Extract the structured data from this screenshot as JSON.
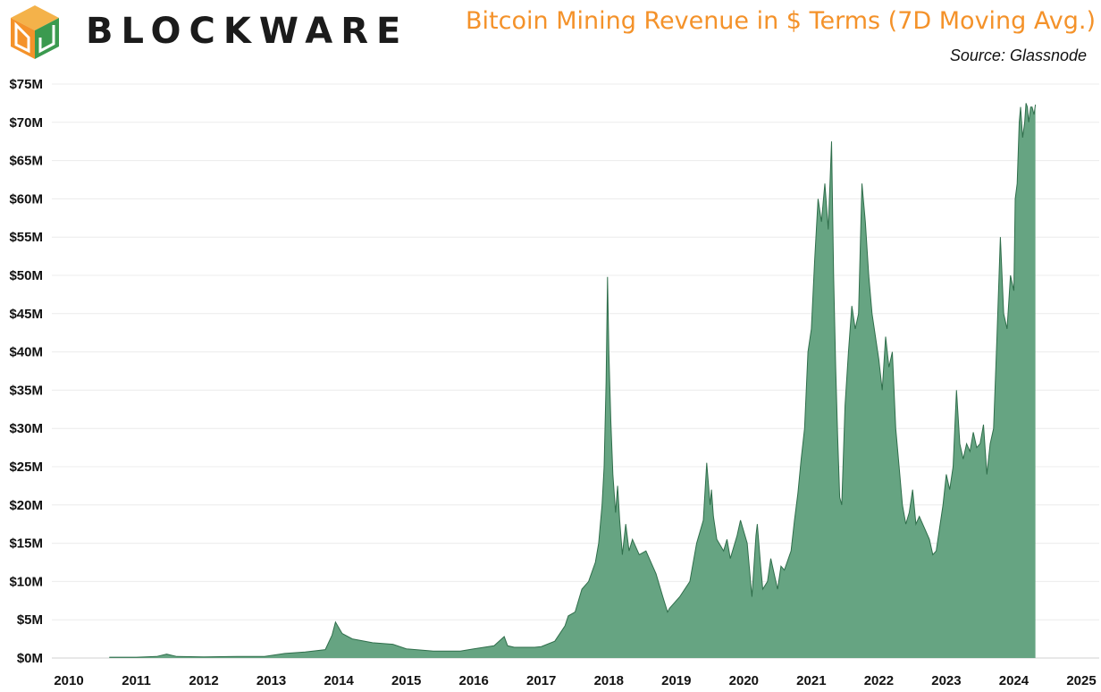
{
  "header": {
    "brand": "BLOCKWARE",
    "title": "Bitcoin Mining Revenue in $ Terms (7D Moving Avg.)",
    "source": "Source: Glassnode"
  },
  "colors": {
    "title": "#f4922a",
    "area_fill": "#66a482",
    "area_line": "#2f6e4b",
    "logo_orange": "#f4922a",
    "logo_green": "#3b9a4f"
  },
  "chart_data": {
    "type": "area",
    "title": "Bitcoin Mining Revenue in $ Terms (7D Moving Avg.)",
    "xlabel": "",
    "ylabel": "",
    "xlim": [
      2010,
      2025
    ],
    "ylim": [
      0,
      75
    ],
    "grid": "horizontal",
    "y_ticks": [
      {
        "value": 0,
        "label": "$0M"
      },
      {
        "value": 5,
        "label": "$5M"
      },
      {
        "value": 10,
        "label": "$10M"
      },
      {
        "value": 15,
        "label": "$15M"
      },
      {
        "value": 20,
        "label": "$20M"
      },
      {
        "value": 25,
        "label": "$25M"
      },
      {
        "value": 30,
        "label": "$30M"
      },
      {
        "value": 35,
        "label": "$35M"
      },
      {
        "value": 40,
        "label": "$40M"
      },
      {
        "value": 45,
        "label": "$45M"
      },
      {
        "value": 50,
        "label": "$50M"
      },
      {
        "value": 55,
        "label": "$55M"
      },
      {
        "value": 60,
        "label": "$60M"
      },
      {
        "value": 65,
        "label": "$65M"
      },
      {
        "value": 70,
        "label": "$70M"
      },
      {
        "value": 75,
        "label": "$75M"
      }
    ],
    "x_ticks": [
      {
        "value": 2010,
        "label": "2010"
      },
      {
        "value": 2011,
        "label": "2011"
      },
      {
        "value": 2012,
        "label": "2012"
      },
      {
        "value": 2013,
        "label": "2013"
      },
      {
        "value": 2014,
        "label": "2014"
      },
      {
        "value": 2015,
        "label": "2015"
      },
      {
        "value": 2016,
        "label": "2016"
      },
      {
        "value": 2017,
        "label": "2017"
      },
      {
        "value": 2018,
        "label": "2018"
      },
      {
        "value": 2019,
        "label": "2019"
      },
      {
        "value": 2020,
        "label": "2020"
      },
      {
        "value": 2021,
        "label": "2021"
      },
      {
        "value": 2022,
        "label": "2022"
      },
      {
        "value": 2023,
        "label": "2023"
      },
      {
        "value": 2024,
        "label": "2024"
      },
      {
        "value": 2025,
        "label": "2025"
      }
    ],
    "series": [
      {
        "x": [
          2010.6,
          2011.0,
          2011.3,
          2011.45,
          2011.6,
          2012.0,
          2012.5,
          2012.9,
          2013.2,
          2013.5,
          2013.8,
          2013.9,
          2013.95,
          2014.05,
          2014.2,
          2014.5,
          2014.8,
          2015.0,
          2015.4,
          2015.8,
          2016.0,
          2016.3,
          2016.45,
          2016.5,
          2016.6,
          2016.9,
          2017.0,
          2017.2,
          2017.35,
          2017.4,
          2017.5,
          2017.6,
          2017.7,
          2017.8,
          2017.85,
          2017.9,
          2017.93,
          2017.96,
          2017.98,
          2018.0,
          2018.03,
          2018.06,
          2018.1,
          2018.13,
          2018.16,
          2018.2,
          2018.25,
          2018.3,
          2018.35,
          2018.45,
          2018.55,
          2018.7,
          2018.8,
          2018.87,
          2018.9,
          2018.95,
          2019.05,
          2019.2,
          2019.3,
          2019.4,
          2019.45,
          2019.5,
          2019.52,
          2019.55,
          2019.6,
          2019.7,
          2019.75,
          2019.8,
          2019.9,
          2019.95,
          2020.05,
          2020.12,
          2020.18,
          2020.2,
          2020.25,
          2020.28,
          2020.35,
          2020.4,
          2020.45,
          2020.5,
          2020.55,
          2020.6,
          2020.7,
          2020.75,
          2020.8,
          2020.85,
          2020.9,
          2020.95,
          2021.0,
          2021.05,
          2021.1,
          2021.15,
          2021.2,
          2021.25,
          2021.3,
          2021.33,
          2021.36,
          2021.39,
          2021.42,
          2021.45,
          2021.5,
          2021.55,
          2021.6,
          2021.65,
          2021.7,
          2021.75,
          2021.8,
          2021.85,
          2021.9,
          2021.95,
          2022.0,
          2022.05,
          2022.1,
          2022.15,
          2022.2,
          2022.25,
          2022.3,
          2022.35,
          2022.4,
          2022.45,
          2022.5,
          2022.55,
          2022.6,
          2022.7,
          2022.75,
          2022.8,
          2022.85,
          2022.9,
          2022.95,
          2023.0,
          2023.05,
          2023.1,
          2023.15,
          2023.2,
          2023.25,
          2023.3,
          2023.35,
          2023.4,
          2023.45,
          2023.5,
          2023.55,
          2023.6,
          2023.65,
          2023.7,
          2023.75,
          2023.8,
          2023.85,
          2023.9,
          2023.95,
          2024.0,
          2024.02,
          2024.05,
          2024.08,
          2024.1,
          2024.13,
          2024.16,
          2024.18,
          2024.2,
          2024.22,
          2024.25,
          2024.27,
          2024.3,
          2024.32
        ],
        "values": [
          0.1,
          0.1,
          0.2,
          0.5,
          0.2,
          0.15,
          0.2,
          0.2,
          0.6,
          0.8,
          1.1,
          3.0,
          4.7,
          3.2,
          2.5,
          2.0,
          1.8,
          1.2,
          0.9,
          0.9,
          1.2,
          1.6,
          2.8,
          1.6,
          1.4,
          1.4,
          1.5,
          2.2,
          4.2,
          5.5,
          6.0,
          9.0,
          10.0,
          12.5,
          15.0,
          20.0,
          25.0,
          36.0,
          49.8,
          40.0,
          31.0,
          24.0,
          19.0,
          22.5,
          18.0,
          13.5,
          17.5,
          14.0,
          15.5,
          13.5,
          14.0,
          11.0,
          8.0,
          6.0,
          6.5,
          7.0,
          8.0,
          10.0,
          15.0,
          18.0,
          25.5,
          20.0,
          22.0,
          18.5,
          15.5,
          14.0,
          15.5,
          13.0,
          16.0,
          18.0,
          15.0,
          8.0,
          16.0,
          17.5,
          12.0,
          9.0,
          10.0,
          13.0,
          11.0,
          9.0,
          12.0,
          11.5,
          14.0,
          18.0,
          21.5,
          26.0,
          30.0,
          40.0,
          43.0,
          52.0,
          60.0,
          57.0,
          62.0,
          56.0,
          67.5,
          50.0,
          38.0,
          29.0,
          21.0,
          20.0,
          33.0,
          40.0,
          46.0,
          43.0,
          45.0,
          62.0,
          57.0,
          50.0,
          45.0,
          42.0,
          39.0,
          35.0,
          42.0,
          38.0,
          40.0,
          30.0,
          25.0,
          20.0,
          17.5,
          19.0,
          22.0,
          17.5,
          18.5,
          16.5,
          15.5,
          13.5,
          14.0,
          17.0,
          20.0,
          24.0,
          22.0,
          25.0,
          35.0,
          28.0,
          26.0,
          28.0,
          27.0,
          29.5,
          27.5,
          28.0,
          30.5,
          24.0,
          28.0,
          30.0,
          42.0,
          55.0,
          45.0,
          43.0,
          50.0,
          48.0,
          60.0,
          62.0,
          70.0,
          72.0,
          68.0,
          70.0,
          72.5,
          72.0,
          70.0,
          72.0,
          72.0,
          71.0,
          72.3
        ]
      }
    ]
  }
}
